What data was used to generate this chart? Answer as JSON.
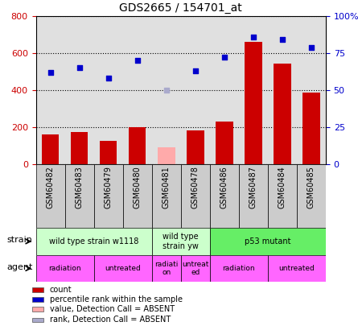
{
  "title": "GDS2665 / 154701_at",
  "samples": [
    "GSM60482",
    "GSM60483",
    "GSM60479",
    "GSM60480",
    "GSM60481",
    "GSM60478",
    "GSM60486",
    "GSM60487",
    "GSM60484",
    "GSM60485"
  ],
  "bar_values": [
    160,
    175,
    125,
    200,
    null,
    185,
    230,
    660,
    545,
    385
  ],
  "bar_absent": [
    null,
    null,
    null,
    null,
    90,
    null,
    null,
    null,
    null,
    null
  ],
  "dot_values": [
    62,
    65,
    58,
    70,
    null,
    63,
    72,
    86,
    84,
    79
  ],
  "dot_absent": [
    null,
    null,
    null,
    null,
    50,
    null,
    null,
    null,
    null,
    null
  ],
  "bar_color": "#cc0000",
  "bar_absent_color": "#ffaaaa",
  "dot_color": "#0000cc",
  "dot_absent_color": "#aaaacc",
  "ylim_left": [
    0,
    800
  ],
  "ylim_right": [
    0,
    100
  ],
  "ytick_labels_left": [
    "0",
    "200",
    "400",
    "600",
    "800"
  ],
  "ytick_labels_right": [
    "0",
    "25",
    "50",
    "75",
    "100%"
  ],
  "strain_groups": [
    {
      "label": "wild type strain w1118",
      "start": 0,
      "end": 4,
      "color": "#ccffcc"
    },
    {
      "label": "wild type\nstrain yw",
      "start": 4,
      "end": 6,
      "color": "#ccffcc"
    },
    {
      "label": "p53 mutant",
      "start": 6,
      "end": 10,
      "color": "#66ee66"
    }
  ],
  "agent_groups": [
    {
      "label": "radiation",
      "start": 0,
      "end": 2,
      "color": "#ff66ff"
    },
    {
      "label": "untreated",
      "start": 2,
      "end": 4,
      "color": "#ff66ff"
    },
    {
      "label": "radiati\non",
      "start": 4,
      "end": 5,
      "color": "#ff66ff"
    },
    {
      "label": "untreat\ned",
      "start": 5,
      "end": 6,
      "color": "#ff66ff"
    },
    {
      "label": "radiation",
      "start": 6,
      "end": 8,
      "color": "#ff66ff"
    },
    {
      "label": "untreated",
      "start": 8,
      "end": 10,
      "color": "#ff66ff"
    }
  ],
  "legend_items": [
    {
      "color": "#cc0000",
      "label": "count"
    },
    {
      "color": "#0000cc",
      "label": "percentile rank within the sample"
    },
    {
      "color": "#ffaaaa",
      "label": "value, Detection Call = ABSENT"
    },
    {
      "color": "#aaaacc",
      "label": "rank, Detection Call = ABSENT"
    }
  ],
  "xtick_bg": "#cccccc"
}
